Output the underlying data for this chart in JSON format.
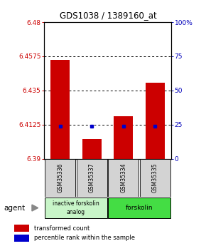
{
  "title": "GDS1038 / 1389160_at",
  "samples": [
    "GSM35336",
    "GSM35337",
    "GSM35334",
    "GSM35335"
  ],
  "ylim": [
    6.39,
    6.48
  ],
  "yticks": [
    6.39,
    6.4125,
    6.435,
    6.4575,
    6.48
  ],
  "ytick_labels": [
    "6.39",
    "6.4125",
    "6.435",
    "6.4575",
    "6.48"
  ],
  "y_right_labels": [
    "0",
    "25",
    "50",
    "75",
    "100%"
  ],
  "bar_tops": [
    6.455,
    6.403,
    6.418,
    6.44
  ],
  "blue_y": [
    6.4115,
    6.4115,
    6.4115,
    6.4115
  ],
  "bar_color": "#cc0000",
  "blue_color": "#0000cc",
  "left_axis_color": "#cc0000",
  "right_axis_color": "#0000bb",
  "group1_color": "#c8f5c8",
  "group2_color": "#44dd44",
  "group1_label": "inactive forskolin\nanalog",
  "group2_label": "forskolin",
  "agent_label": "agent",
  "legend_items": [
    "transformed count",
    "percentile rank within the sample"
  ]
}
